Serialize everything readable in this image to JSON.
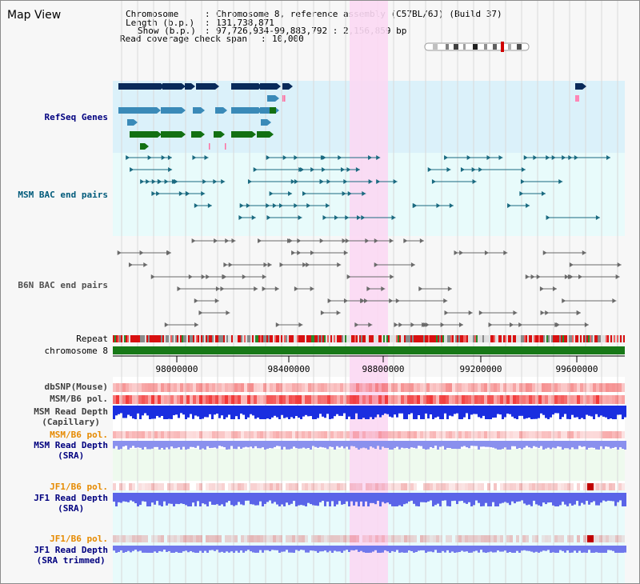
{
  "title": "Map View",
  "header": {
    "chromosome_key": "Chromosome",
    "chromosome_value": "Chromosome 8, reference assembly (C57BL/6J) (Build 37)",
    "length_key": "Length (b.p.)",
    "length_value": "131,738,871",
    "show_key": "Show (b.p.)",
    "show_value": "97,726,934-99,883,792 : 2,156,859 bp",
    "coverage_key": "Read coverage check span",
    "coverage_value": "10,000"
  },
  "tracks": {
    "refseq": "RefSeq Genes",
    "msm_bac": "MSM BAC end pairs",
    "b6n_bac": "B6N BAC end pairs",
    "repeat": "Repeat",
    "chromosome": "chromosome 8",
    "dbsnp": "dbSNP(Mouse)",
    "msm_b6_pol_1": "MSM/B6 pol.",
    "msm_depth_cap_1": "MSM Read Depth",
    "msm_depth_cap_2": "(Capillary)",
    "msm_b6_pol_2": "MSM/B6 pol.",
    "msm_depth_sra_1": "MSM Read Depth",
    "msm_depth_sra_2": "(SRA)",
    "jf1_b6_pol_1": "JF1/B6 pol.",
    "jf1_depth_sra_1": "JF1 Read Depth",
    "jf1_depth_sra_2": "(SRA)",
    "jf1_b6_pol_2": "JF1/B6 pol.",
    "jf1_depth_trim_1": "JF1 Read Depth",
    "jf1_depth_trim_2": "(SRA trimmed)"
  },
  "axis": {
    "ticks": [
      "98000000",
      "98400000",
      "98800000",
      "99200000",
      "99600000"
    ]
  },
  "colors": {
    "refseq_bg": "#dbf1fa",
    "bac_bg": "#e8fbfb",
    "highlight": "#fbd8f3",
    "chromosome_bar": "#177817",
    "msm_label": "#00007f",
    "bac_label": "#005a7a",
    "jf1_pol_label": "#e68a00"
  }
}
